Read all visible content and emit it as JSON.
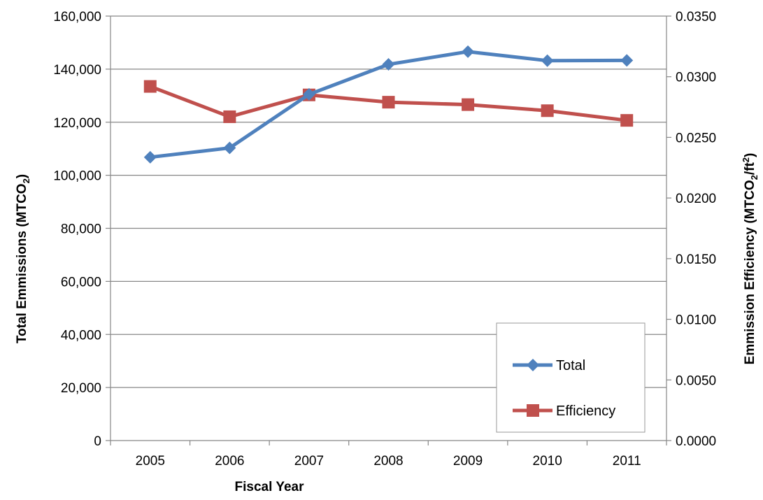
{
  "chart_data": {
    "type": "line",
    "categories": [
      "2005",
      "2006",
      "2007",
      "2008",
      "2009",
      "2010",
      "2011"
    ],
    "xlabel": "Fiscal Year",
    "ylabel": {
      "main": "Total Emmissions (MTCO",
      "sub": "2",
      "end": ")"
    },
    "y2label": {
      "main": "Emmission Efficiency (MTCO",
      "sub": "2",
      "mid": "/ft",
      "sup": "2",
      "end": ")"
    },
    "ylim": [
      0,
      160000
    ],
    "y_ticks": [
      0,
      20000,
      40000,
      60000,
      80000,
      100000,
      120000,
      140000,
      160000
    ],
    "y_tick_labels": [
      "0",
      "20,000",
      "40,000",
      "60,000",
      "80,000",
      "100,000",
      "120,000",
      "140,000",
      "160,000"
    ],
    "y2lim": [
      0,
      0.035
    ],
    "y2_ticks": [
      0,
      0.005,
      0.01,
      0.015,
      0.02,
      0.025,
      0.03,
      0.035
    ],
    "y2_tick_labels": [
      "0.0000",
      "0.0050",
      "0.0100",
      "0.0150",
      "0.0200",
      "0.0250",
      "0.0300",
      "0.0350"
    ],
    "grid": true,
    "legend_position": "bottom-right",
    "series": [
      {
        "name": "Total",
        "axis": "left",
        "marker": "diamond",
        "color": "#4F81BD",
        "values": [
          106800,
          110300,
          130500,
          141800,
          146600,
          143200,
          143300
        ]
      },
      {
        "name": "Efficiency",
        "axis": "right",
        "marker": "square",
        "color": "#C0504D",
        "values": [
          0.0292,
          0.0267,
          0.0285,
          0.0279,
          0.0277,
          0.0272,
          0.0264
        ]
      }
    ]
  }
}
